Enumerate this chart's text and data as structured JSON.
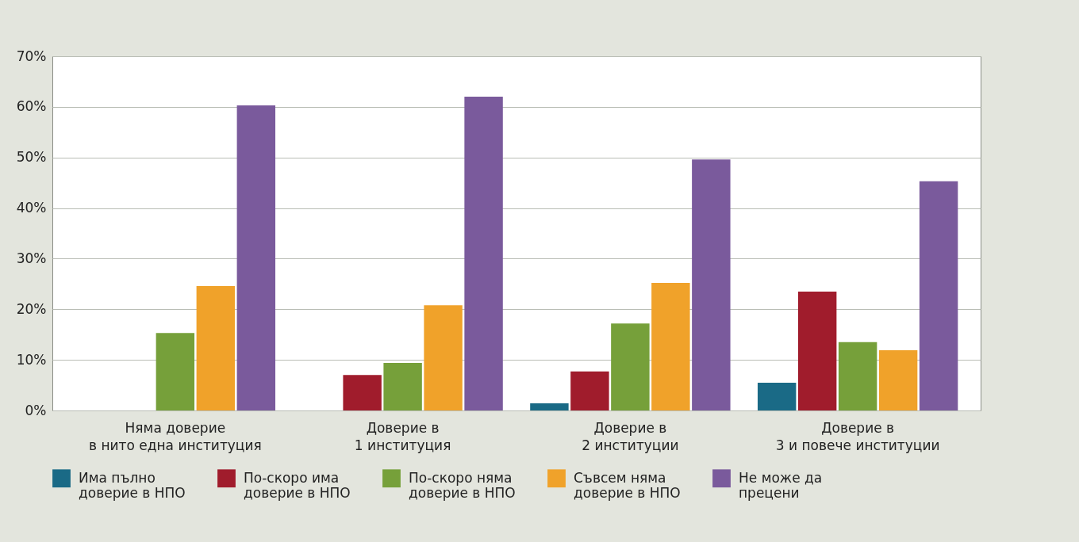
{
  "chart_data": {
    "type": "bar",
    "categories": [
      "Няма доверие в нито една институция",
      "Доверие в 1 институция",
      "Доверие в 2 институции",
      "Доверие в 3 и повече институции"
    ],
    "series": [
      {
        "name": "Има пълно доверие в НПО",
        "color": "#1a6a86",
        "values": [
          0,
          0,
          1.4,
          5.5
        ]
      },
      {
        "name": "По-скоро има доверие в НПО",
        "color": "#a01c2c",
        "values": [
          0,
          7.0,
          7.7,
          23.5
        ]
      },
      {
        "name": "По-скоро няма доверие в НПО",
        "color": "#76a03a",
        "values": [
          15.3,
          9.4,
          17.2,
          13.5
        ]
      },
      {
        "name": "Съвсем няма доверие в НПО",
        "color": "#f0a22a",
        "values": [
          24.6,
          20.8,
          25.2,
          11.9
        ]
      },
      {
        "name": "Не може да прецени",
        "color": "#7a5a9c",
        "values": [
          60.3,
          62.0,
          49.6,
          45.3
        ]
      }
    ],
    "ylim": [
      0,
      70
    ],
    "yticks": [
      {
        "value": 0,
        "label": "0%"
      },
      {
        "value": 10,
        "label": "10%"
      },
      {
        "value": 20,
        "label": "20%"
      },
      {
        "value": 30,
        "label": "30%"
      },
      {
        "value": 40,
        "label": "40%"
      },
      {
        "value": 50,
        "label": "50%"
      },
      {
        "value": 60,
        "label": "60%"
      },
      {
        "value": 70,
        "label": "70%"
      }
    ],
    "grid": "y",
    "legend": "bottom"
  }
}
